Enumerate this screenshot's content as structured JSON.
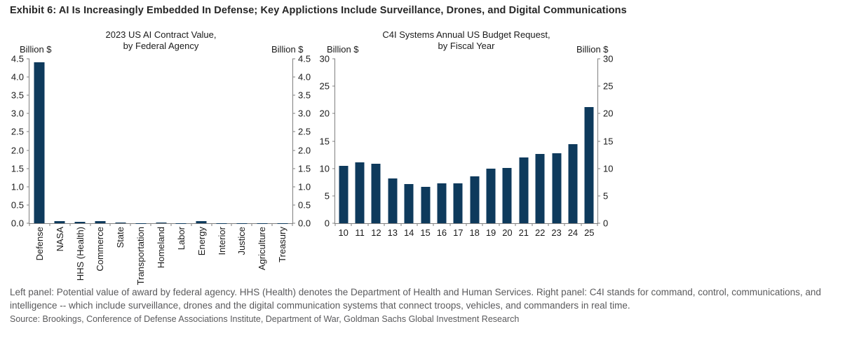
{
  "exhibit_title": "Exhibit 6: AI Is Increasingly Embedded In Defense; Key Applictions Include Surveillance, Drones, and Digital Communications",
  "footnote": "Left panel: Potential value of award by federal agency. HHS (Health) denotes the Department of Health and Human Services. Right panel: C4I stands for command, control, communications, and intelligence -- which include surveillance, drones and the digital communication systems that connect troops, vehicles, and commanders in real time.",
  "source": "Source: Brookings, Conference of Defense Associations Institute, Department of War, Goldman Sachs Global Investment Research",
  "colors": {
    "bar": "#0e3a5c",
    "axis": "#7f7f7f",
    "tick_label": "#1a1a1a",
    "title": "#262626",
    "muted": "#5a5a5c"
  },
  "chart_data": [
    {
      "type": "bar",
      "title_line1": "2023 US AI Contract Value,",
      "title_line2": "by Federal Agency",
      "unit_label_left": "Billion $",
      "unit_label_right": "Billion $",
      "categories": [
        "Defense",
        "NASA",
        "HHS (Health)",
        "Commerce",
        "State",
        "Transportation",
        "Homeland",
        "Labor",
        "Energy",
        "Interior",
        "Justice",
        "Agriculture",
        "Treasury"
      ],
      "values": [
        4.4,
        0.06,
        0.04,
        0.06,
        0.01,
        0.005,
        0.025,
        0.005,
        0.06,
        0.005,
        0.005,
        0.005,
        0.005
      ],
      "ylim": [
        0,
        4.5
      ],
      "yticks": [
        "0.0",
        "0.5",
        "1.0",
        "1.5",
        "2.0",
        "2.5",
        "3.0",
        "3.5",
        "4.0",
        "4.5"
      ],
      "x_label_rotation": "vertical",
      "grid": false,
      "legend": "none"
    },
    {
      "type": "bar",
      "title_line1": "C4I Systems Annual US Budget Request,",
      "title_line2": "by Fiscal Year",
      "unit_label_left": "Billion $",
      "unit_label_right": "Billion $",
      "categories": [
        "10",
        "11",
        "12",
        "13",
        "14",
        "15",
        "16",
        "17",
        "18",
        "19",
        "20",
        "21",
        "22",
        "23",
        "24",
        "25"
      ],
      "values": [
        10.5,
        11.1,
        10.9,
        8.2,
        7.1,
        6.6,
        7.3,
        7.3,
        8.6,
        10.0,
        10.1,
        12.0,
        12.7,
        12.8,
        14.4,
        21.2
      ],
      "ylim": [
        0,
        30
      ],
      "yticks": [
        "0",
        "5",
        "10",
        "15",
        "20",
        "25",
        "30"
      ],
      "x_label_rotation": "horizontal",
      "grid": false,
      "legend": "none"
    }
  ]
}
